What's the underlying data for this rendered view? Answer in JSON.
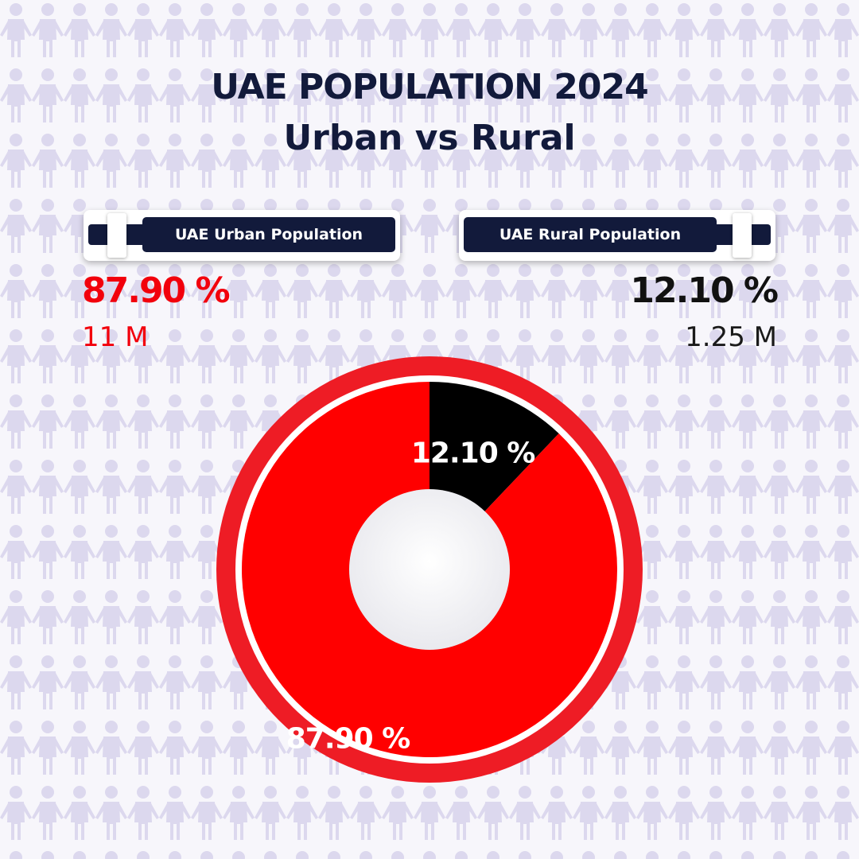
{
  "header": {
    "title": "UAE POPULATION 2024",
    "subtitle": "Urban vs Rural"
  },
  "urban": {
    "badge_label": "UAE Urban Population",
    "percent_text": "87.90 %",
    "count_text": "11 M"
  },
  "rural": {
    "badge_label": "UAE Rural Population",
    "percent_text": "12.10 %",
    "count_text": "1.25 M"
  },
  "colors": {
    "navy": "#121a3b",
    "urban_red": "#f2000c",
    "rural_black": "#000000",
    "ring_red": "#ee1c25",
    "pattern": "#dcd8ee"
  },
  "chart_data": {
    "type": "pie",
    "labels": [
      "UAE Urban Population",
      "UAE Rural Population"
    ],
    "values": [
      87.9,
      12.1
    ],
    "value_labels": [
      "87.90 %",
      "12.10 %"
    ],
    "counts": [
      "11 M",
      "1.25 M"
    ],
    "colors": [
      "#ff0000",
      "#000000"
    ],
    "donut": true,
    "start_angle_deg": 0,
    "direction": "clockwise",
    "title": "UAE POPULATION 2024",
    "subtitle": "Urban vs Rural"
  }
}
